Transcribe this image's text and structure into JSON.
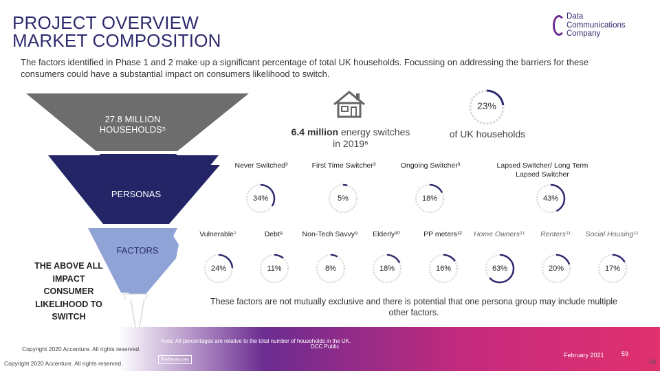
{
  "header": {
    "title_line1": "PROJECT OVERVIEW",
    "title_line2": "MARKET COMPOSITION",
    "logo_line1": "Data",
    "logo_line2": "Communications",
    "logo_line3": "Company"
  },
  "intro": "The factors identified in Phase 1 and 2 make up a significant percentage of total UK households. Focussing on addressing the barriers for these consumers could have a substantial impact on consumers likelihood to switch.",
  "funnel": {
    "households": "27.8 MILLION",
    "households2": "HOUSEHOLDS⁵",
    "personas": "PERSONAS",
    "factors": "FACTORS",
    "impact": "THE ABOVE ALL IMPACT CONSUMER LIKELIHOOD TO SWITCH",
    "colors": {
      "top": "#6d6d6d",
      "mid": "#232567",
      "low": "#8fa3d6",
      "tip": "#ffffff"
    }
  },
  "stats": {
    "energy_bold": "6.4 million",
    "energy_rest": " energy switches in 2019⁶",
    "percent": "23%",
    "percent_value": 23,
    "of_uk": "of UK households"
  },
  "personas": [
    {
      "label": "Never Switched³",
      "pct": "34%",
      "value": 34
    },
    {
      "label": "First Time Switcher³",
      "pct": "5%",
      "value": 5
    },
    {
      "label": "Ongoing Switcher³",
      "pct": "18%",
      "value": 18
    },
    {
      "label": "Lapsed Switcher/ Long Term Lapsed Switcher",
      "pct": "43%",
      "value": 43
    }
  ],
  "factors": [
    {
      "label": "Vulnerable⁷",
      "pct": "24%",
      "value": 24,
      "italic": false
    },
    {
      "label": "Debt⁸",
      "pct": "11%",
      "value": 11,
      "italic": false
    },
    {
      "label": "Non-Tech Savvy⁹",
      "pct": "8%",
      "value": 8,
      "italic": false
    },
    {
      "label": "Elderly¹⁰",
      "pct": "18%",
      "value": 18,
      "italic": false
    },
    {
      "label": "PP meters¹²",
      "pct": "16%",
      "value": 16,
      "italic": false
    },
    {
      "label": "Home Owners¹¹",
      "pct": "63%",
      "value": 63,
      "italic": true
    },
    {
      "label": "Renters¹¹",
      "pct": "20%",
      "value": 20,
      "italic": true
    },
    {
      "label": "Social Housing¹¹",
      "pct": "17%",
      "value": 17,
      "italic": true
    }
  ],
  "note": "These factors are not mutually exclusive and there is potential that one persona group may include multiple other factors.",
  "footer": {
    "note": "Note: All percentages are relative to the total number of households in the UK.",
    "references": "References",
    "public": "DCC Public",
    "copyright": "Copyright 2020 Accenture. All rights reserved.",
    "date": "February 2021",
    "page": "59",
    "page2": "59"
  },
  "colors": {
    "accent": "#2d2a6e",
    "ring": "#2d2a6e",
    "ring_track": "#d9d9d9",
    "brand_purple": "#6b2c91"
  }
}
